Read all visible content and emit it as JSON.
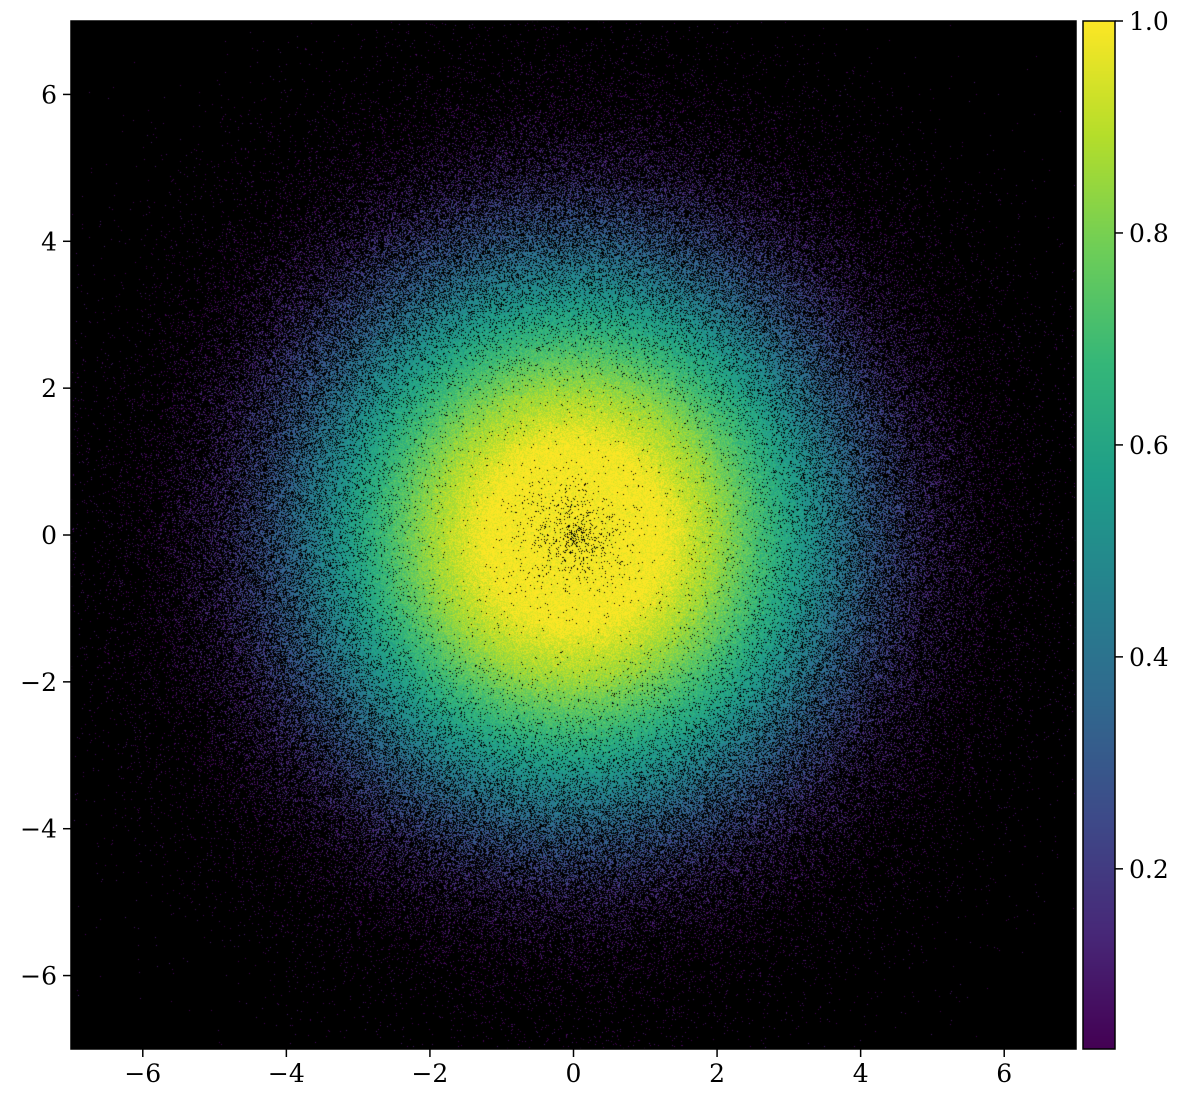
{
  "chart_data": {
    "type": "heatmap",
    "description_source": "density scatter of points colored by normalized value",
    "x_range": [
      -7,
      7
    ],
    "y_range": [
      -7,
      7
    ],
    "x_ticks": [
      -6,
      -4,
      -2,
      0,
      2,
      4,
      6
    ],
    "y_ticks": [
      -6,
      -4,
      -2,
      0,
      2,
      4,
      6
    ],
    "x_tick_labels": [
      "−6",
      "−4",
      "−2",
      "0",
      "2",
      "4",
      "6"
    ],
    "y_tick_labels": [
      "−6",
      "−4",
      "−2",
      "0",
      "2",
      "4",
      "6"
    ],
    "background_color": "#000000",
    "colormap": "viridis",
    "colorbar": {
      "range": [
        0.03,
        1.0
      ],
      "ticks": [
        0.2,
        0.4,
        0.6,
        0.8,
        1.0
      ],
      "tick_labels": [
        "0.2",
        "0.4",
        "0.6",
        "0.8",
        "1.0"
      ]
    },
    "structure": {
      "distribution": "radially symmetric, centered at (0, 0)",
      "radial_profile": [
        {
          "r": 0.0,
          "value": 1.0,
          "density": "sparse (appears black)"
        },
        {
          "r": 1.2,
          "value": 1.0
        },
        {
          "r": 2.0,
          "value": 0.85
        },
        {
          "r": 3.0,
          "value": 0.6
        },
        {
          "r": 4.0,
          "value": 0.35
        },
        {
          "r": 5.0,
          "value": 0.15
        },
        {
          "r": 6.0,
          "value": 0.05
        }
      ],
      "extent_radius": 6.5
    },
    "title": "",
    "xlabel": "",
    "ylabel": ""
  }
}
